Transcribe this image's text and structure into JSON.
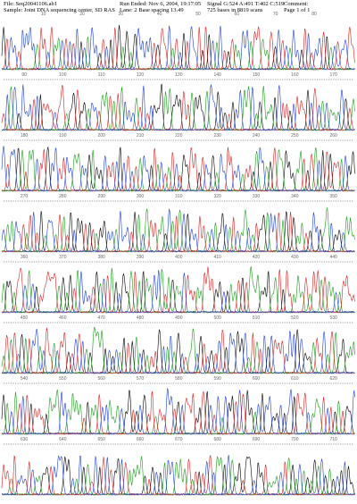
{
  "header": {
    "file": "File: Seq20041106.ab1",
    "sample": "Sample: Joint DNA sequencing center, SD RAS",
    "run": "Run Ended: Nov 6, 2004, 19:17:05",
    "lane": "Lane: 2  Base spacing 13.49",
    "signal": "Signal G:524 A:491 T:402 C:519",
    "bases": "725 bases in 8819 scans",
    "comment": "Comment:",
    "page": "Page 1 of 1"
  },
  "position_rows": [
    [
      10,
      20,
      30,
      40,
      50,
      60,
      70,
      80
    ],
    [
      90,
      100,
      110,
      120,
      130,
      140,
      150,
      160,
      170
    ],
    [
      180,
      190,
      200,
      210,
      220,
      230,
      240,
      250,
      260
    ],
    [
      270,
      280,
      290,
      300,
      310,
      320,
      330,
      340,
      350
    ],
    [
      360,
      370,
      380,
      390,
      400,
      410,
      420,
      430,
      440
    ],
    [
      450,
      460,
      470,
      480,
      490,
      500,
      510,
      520,
      530
    ],
    [
      540,
      550,
      560,
      570,
      580,
      590,
      600,
      610,
      620
    ],
    [
      630,
      640,
      650,
      660,
      670,
      680,
      690,
      700,
      710
    ]
  ]
}
